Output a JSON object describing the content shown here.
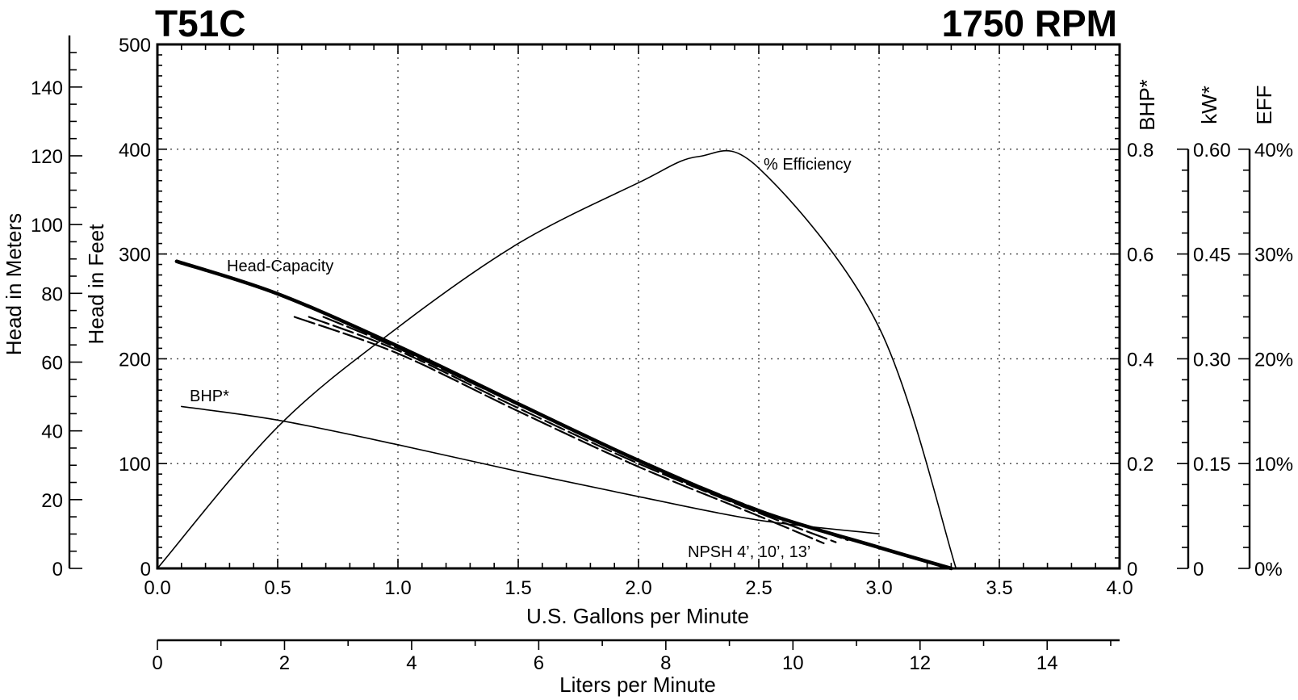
{
  "chart_data": {
    "type": "line",
    "title": "T51C",
    "subtitle": "1750 RPM",
    "xlabel": "U.S. Gallons per Minute",
    "xlim": [
      0,
      4
    ],
    "x_ticks": [
      "0.0",
      "0.5",
      "1.0",
      "1.5",
      "2.0",
      "2.5",
      "3.0",
      "3.5",
      "4.0"
    ],
    "secondary_x": {
      "label": "Liters per Minute",
      "lim": [
        0,
        15.14
      ],
      "ticks": [
        "0",
        "2",
        "4",
        "6",
        "8",
        "10",
        "12",
        "14"
      ]
    },
    "ylabel": "Head in Feet",
    "ylim": [
      0,
      500
    ],
    "y_ticks": [
      "0",
      "100",
      "200",
      "300",
      "400",
      "500"
    ],
    "y_meters": {
      "label": "Head in Meters",
      "ticks": [
        "0",
        "20",
        "40",
        "60",
        "80",
        "100",
        "120",
        "140"
      ]
    },
    "right_axes": [
      {
        "label": "BHP*",
        "ticks": [
          "0",
          "0.2",
          "0.4",
          "0.6",
          "0.8"
        ]
      },
      {
        "label": "kW*",
        "ticks": [
          "0",
          "0.15",
          "0.30",
          "0.45",
          "0.60"
        ]
      },
      {
        "label": "EFF",
        "ticks": [
          "0%",
          "10%",
          "20%",
          "30%",
          "40%"
        ]
      }
    ],
    "grid": true,
    "series": [
      {
        "name": "Head-Capacity",
        "unit": "ft",
        "x": [
          0.08,
          0.5,
          1.0,
          1.5,
          2.0,
          2.5,
          3.0,
          3.3
        ],
        "y": [
          293,
          262,
          212,
          157,
          103,
          55,
          20,
          0
        ]
      },
      {
        "name": "% Efficiency",
        "unit": "%",
        "x": [
          0.0,
          0.5,
          1.0,
          1.5,
          2.0,
          2.25,
          2.5,
          3.0,
          3.32
        ],
        "y": [
          0.0,
          13.5,
          23.0,
          31.0,
          36.8,
          39.3,
          38.2,
          23.0,
          0.0
        ]
      },
      {
        "name": "BHP*",
        "unit": "hp",
        "x": [
          0.1,
          0.5,
          1.0,
          1.5,
          2.0,
          2.5,
          3.0
        ],
        "y": [
          0.309,
          0.283,
          0.236,
          0.185,
          0.137,
          0.092,
          0.066
        ]
      },
      {
        "name": "NPSH 4'",
        "unit": "ft",
        "x": [
          0.57,
          1.0,
          1.5,
          2.0,
          2.5,
          2.77
        ],
        "y": [
          240,
          205,
          150,
          97,
          50,
          24
        ]
      },
      {
        "name": "NPSH 10'",
        "unit": "ft",
        "x": [
          0.63,
          1.0,
          1.5,
          2.0,
          2.5,
          2.82
        ],
        "y": [
          240,
          208,
          153,
          100,
          53,
          25
        ]
      },
      {
        "name": "NPSH 13'",
        "unit": "ft",
        "x": [
          0.69,
          1.0,
          1.5,
          2.0,
          2.5,
          2.87
        ],
        "y": [
          240,
          210,
          156,
          103,
          56,
          27
        ]
      }
    ],
    "annotations": {
      "head": "Head-Capacity",
      "efficiency": "% Efficiency",
      "bhp": "BHP*",
      "npsh": "NPSH 4’, 10’, 13’"
    }
  }
}
